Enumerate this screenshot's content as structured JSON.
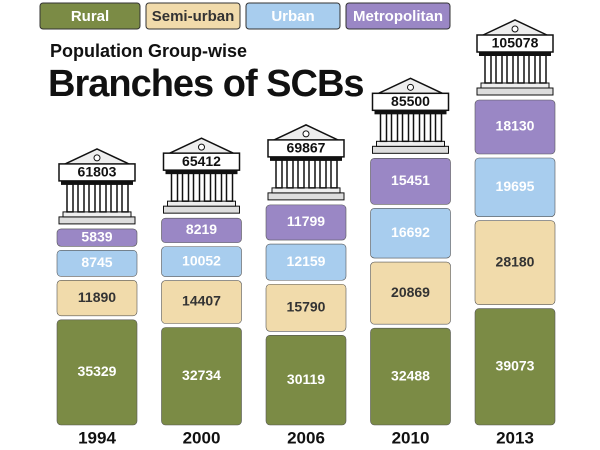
{
  "chart_data": {
    "type": "bar",
    "stacked": true,
    "subtitle": "Population Group-wise",
    "title": "Branches of SCBs",
    "categories": [
      "1994",
      "2000",
      "2006",
      "2010",
      "2013"
    ],
    "series": [
      {
        "name": "Rural",
        "color": "#7b8b45",
        "values": [
          35329,
          32734,
          30119,
          32488,
          39073
        ]
      },
      {
        "name": "Semi-urban",
        "color": "#f1dbab",
        "values": [
          11890,
          14407,
          15790,
          20869,
          28180
        ]
      },
      {
        "name": "Urban",
        "color": "#a8cdee",
        "values": [
          8745,
          10052,
          12159,
          16692,
          19695
        ]
      },
      {
        "name": "Metropolitan",
        "color": "#9a87c5",
        "values": [
          5839,
          8219,
          11799,
          15451,
          18130
        ]
      }
    ],
    "totals": [
      61803,
      65412,
      69867,
      85500,
      105078
    ]
  }
}
